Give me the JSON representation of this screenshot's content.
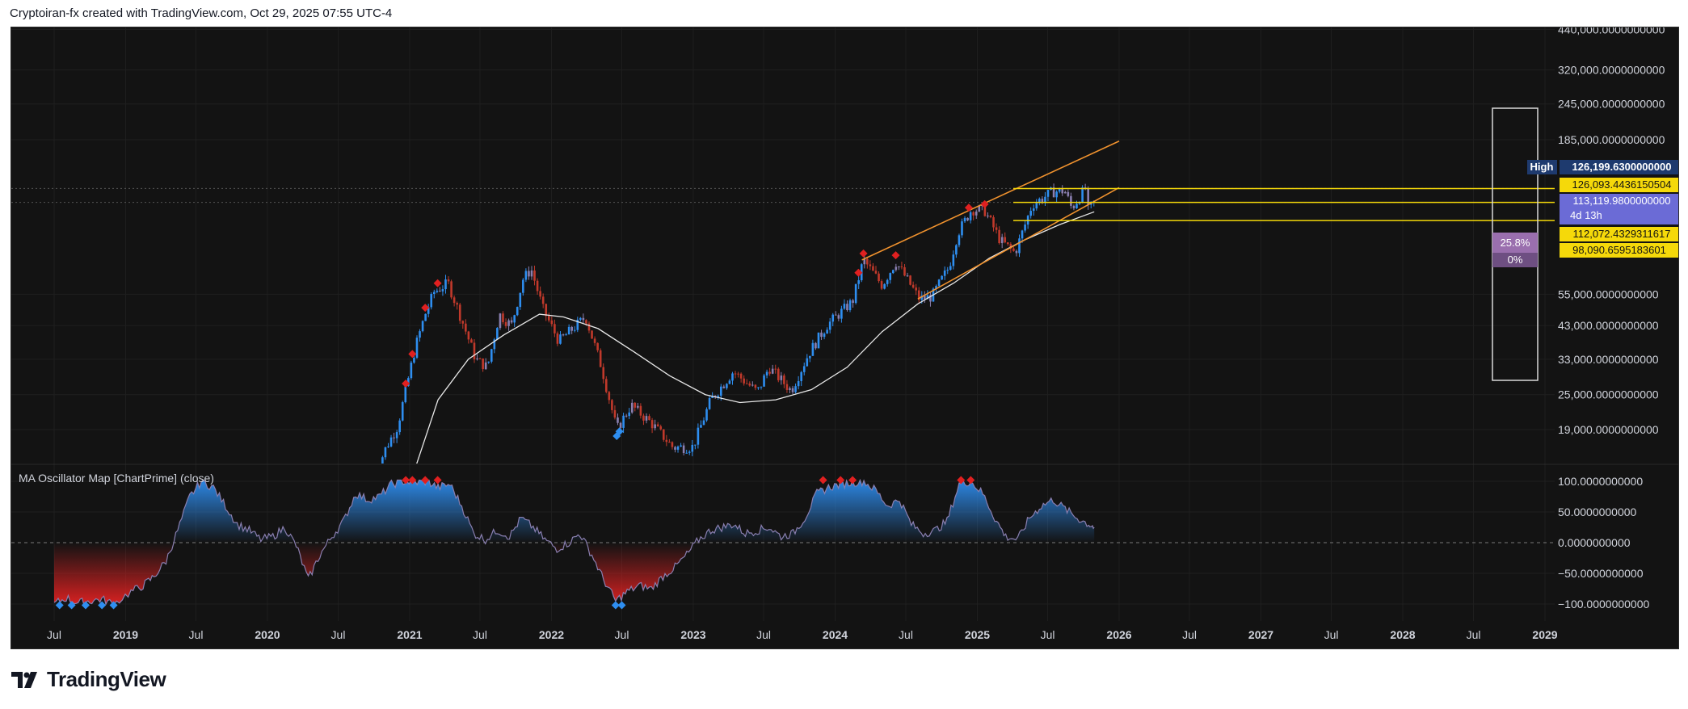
{
  "header": {
    "text": "Cryptoiran-fx created with TradingView.com, Oct 29, 2025 07:55 UTC-4"
  },
  "footer": {
    "brand": "TradingView"
  },
  "price_axis": {
    "ticks": [
      "440,000.0000000000",
      "320,000.0000000000",
      "245,000.0000000000",
      "185,000.0000000000",
      "55,000.0000000000",
      "43,000.0000000000",
      "33,000.0000000000",
      "25,000.0000000000",
      "19,000.0000000000"
    ],
    "tick_values": [
      440000,
      320000,
      245000,
      185000,
      55000,
      43000,
      33000,
      25000,
      19000
    ]
  },
  "price_tags": {
    "high_label": "High",
    "high_value": "126,199.6300000000",
    "tag1": "126,093.4436150504",
    "tag2": "113,119.9800000000",
    "tag2_sub": "4d 13h",
    "tag3": "112,072.4329311617",
    "tag4": "98,090.6595183601",
    "pct_top": "25.8%",
    "pct_bottom": "0%"
  },
  "oscillator": {
    "title": "MA Oscillator Map [ChartPrime] (close)",
    "ticks": [
      "100.0000000000",
      "50.0000000000",
      "0.0000000000",
      "−50.0000000000",
      "−100.0000000000"
    ],
    "tick_values": [
      100,
      50,
      0,
      -50,
      -100
    ]
  },
  "time_axis": {
    "labels": [
      {
        "text": "Jul",
        "bold": false
      },
      {
        "text": "2019",
        "bold": true
      },
      {
        "text": "Jul",
        "bold": false
      },
      {
        "text": "2020",
        "bold": true
      },
      {
        "text": "Jul",
        "bold": false
      },
      {
        "text": "2021",
        "bold": true
      },
      {
        "text": "Jul",
        "bold": false
      },
      {
        "text": "2022",
        "bold": true
      },
      {
        "text": "Jul",
        "bold": false
      },
      {
        "text": "2023",
        "bold": true
      },
      {
        "text": "Jul",
        "bold": false
      },
      {
        "text": "2024",
        "bold": true
      },
      {
        "text": "Jul",
        "bold": false
      },
      {
        "text": "2025",
        "bold": true
      },
      {
        "text": "Jul",
        "bold": false
      },
      {
        "text": "2026",
        "bold": true
      },
      {
        "text": "Jul",
        "bold": false
      },
      {
        "text": "2027",
        "bold": true
      },
      {
        "text": "Jul",
        "bold": false
      },
      {
        "text": "2028",
        "bold": true
      },
      {
        "text": "Jul",
        "bold": false
      },
      {
        "text": "2029",
        "bold": true
      }
    ]
  },
  "colors": {
    "background": "#131313",
    "bull": "#2e8ef0",
    "bear": "#c0392b",
    "neutral": "#8a7fb0",
    "ma": "#e8e8e8",
    "channel": "#f0922e",
    "level": "#f5d90a",
    "high_tag": "#1e3a6e",
    "current_tag": "#6b6bd6"
  },
  "chart_data": [
    {
      "type": "candlestick",
      "ylabel": "",
      "scale": "log",
      "ylim": [
        16000,
        460000
      ],
      "x": [
        "2018-07",
        "2019-01",
        "2019-07",
        "2020-01",
        "2020-07",
        "2021-01",
        "2021-07",
        "2022-01",
        "2022-07",
        "2023-01",
        "2023-07",
        "2024-01",
        "2024-07",
        "2025-01",
        "2025-07",
        "2026-01",
        "2026-07",
        "2027-01",
        "2027-07",
        "2028-01",
        "2028-07",
        "2029-01"
      ],
      "price_path": [
        [
          "2020-10-01",
          13000
        ],
        [
          "2020-11-01",
          16500
        ],
        [
          "2020-12-01",
          19500
        ],
        [
          "2020-12-25",
          27000
        ],
        [
          "2021-01-15",
          36000
        ],
        [
          "2021-02-10",
          47000
        ],
        [
          "2021-03-05",
          56000
        ],
        [
          "2021-04-10",
          60000
        ],
        [
          "2021-05-15",
          45000
        ],
        [
          "2021-06-20",
          33000
        ],
        [
          "2021-07-20",
          31000
        ],
        [
          "2021-08-20",
          47000
        ],
        [
          "2021-09-20",
          43000
        ],
        [
          "2021-10-20",
          62000
        ],
        [
          "2021-11-10",
          67000
        ],
        [
          "2021-12-10",
          49000
        ],
        [
          "2022-01-20",
          38000
        ],
        [
          "2022-03-30",
          46000
        ],
        [
          "2022-05-10",
          31000
        ],
        [
          "2022-06-18",
          19000
        ],
        [
          "2022-07-25",
          23000
        ],
        [
          "2022-09-15",
          20000
        ],
        [
          "2022-11-10",
          16500
        ],
        [
          "2022-12-31",
          16600
        ],
        [
          "2023-02-15",
          24000
        ],
        [
          "2023-04-14",
          30000
        ],
        [
          "2023-06-15",
          25500
        ],
        [
          "2023-07-15",
          31000
        ],
        [
          "2023-09-10",
          25800
        ],
        [
          "2023-10-25",
          34500
        ],
        [
          "2023-12-10",
          43000
        ],
        [
          "2024-02-15",
          52000
        ],
        [
          "2024-03-14",
          72000
        ],
        [
          "2024-05-01",
          59000
        ],
        [
          "2024-06-05",
          71000
        ],
        [
          "2024-08-05",
          53000
        ],
        [
          "2024-09-06",
          54000
        ],
        [
          "2024-10-20",
          68000
        ],
        [
          "2024-11-12",
          89000
        ],
        [
          "2024-12-17",
          107000
        ],
        [
          "2025-01-20",
          106000
        ],
        [
          "2025-03-01",
          84000
        ],
        [
          "2025-04-08",
          76000
        ],
        [
          "2025-05-22",
          111000
        ],
        [
          "2025-07-14",
          123000
        ],
        [
          "2025-08-14",
          124000
        ],
        [
          "2025-09-01",
          108000
        ],
        [
          "2025-10-06",
          126199
        ],
        [
          "2025-10-10",
          105000
        ],
        [
          "2025-10-29",
          113120
        ]
      ],
      "moving_average": [
        [
          "2021-01-15",
          14000
        ],
        [
          "2021-03-15",
          24000
        ],
        [
          "2021-06-01",
          33000
        ],
        [
          "2021-09-01",
          40000
        ],
        [
          "2021-12-01",
          47000
        ],
        [
          "2022-02-01",
          46000
        ],
        [
          "2022-05-01",
          42000
        ],
        [
          "2022-08-01",
          35000
        ],
        [
          "2022-11-01",
          29000
        ],
        [
          "2023-02-01",
          25000
        ],
        [
          "2023-05-01",
          23500
        ],
        [
          "2023-08-01",
          24000
        ],
        [
          "2023-11-01",
          26000
        ],
        [
          "2024-02-01",
          31000
        ],
        [
          "2024-05-01",
          41000
        ],
        [
          "2024-08-01",
          51000
        ],
        [
          "2024-11-01",
          60000
        ],
        [
          "2025-02-01",
          73000
        ],
        [
          "2025-05-01",
          84000
        ],
        [
          "2025-08-01",
          95000
        ],
        [
          "2025-10-29",
          105000
        ]
      ],
      "signals_sell": [
        "2020-12-22",
        "2021-01-08",
        "2021-02-10",
        "2021-03-14",
        "2024-03-01",
        "2024-03-14",
        "2024-06-05",
        "2024-12-10",
        "2025-01-20"
      ],
      "signals_buy": [
        "2022-06-18",
        "2022-06-25"
      ],
      "channel": {
        "upper": [
          [
            "2024-03-10",
            72000
          ],
          [
            "2026-01-01",
            183000
          ]
        ],
        "lower": [
          [
            "2024-08-01",
            53000
          ],
          [
            "2026-01-01",
            127000
          ]
        ]
      },
      "levels": [
        {
          "value": 126093.44,
          "label": "126,093.4436150504"
        },
        {
          "value": 113119.98,
          "label": "113,119.9800000000"
        },
        {
          "value": 112072.43,
          "label": "112,072.4329311617"
        },
        {
          "value": 98090.66,
          "label": "98,090.6595183601"
        }
      ],
      "high": 126199.63
    },
    {
      "type": "area",
      "name": "MA Oscillator Map [ChartPrime] (close)",
      "ylim": [
        -110,
        110
      ],
      "x": [
        "2018-07-01",
        "2018-08-01",
        "2018-09-01",
        "2018-10-01",
        "2018-11-01",
        "2018-12-01",
        "2019-01-15",
        "2019-02-15",
        "2019-03-15",
        "2019-04-15",
        "2019-05-15",
        "2019-06-15",
        "2019-07-15",
        "2019-08-15",
        "2019-09-15",
        "2019-10-15",
        "2019-11-15",
        "2019-12-15",
        "2020-01-15",
        "2020-02-15",
        "2020-03-15",
        "2020-04-15",
        "2020-05-15",
        "2020-06-15",
        "2020-07-15",
        "2020-08-15",
        "2020-09-15",
        "2020-10-15",
        "2020-11-15",
        "2020-12-15",
        "2021-01-15",
        "2021-02-15",
        "2021-03-15",
        "2021-04-15",
        "2021-05-15",
        "2021-06-15",
        "2021-07-15",
        "2021-08-15",
        "2021-09-15",
        "2021-10-15",
        "2021-11-15",
        "2021-12-15",
        "2022-01-15",
        "2022-02-15",
        "2022-03-15",
        "2022-04-15",
        "2022-05-15",
        "2022-06-15",
        "2022-07-15",
        "2022-08-15",
        "2022-09-15",
        "2022-10-15",
        "2022-11-15",
        "2022-12-15",
        "2023-01-15",
        "2023-02-15",
        "2023-03-15",
        "2023-04-15",
        "2023-05-15",
        "2023-06-15",
        "2023-07-15",
        "2023-08-15",
        "2023-09-15",
        "2023-10-15",
        "2023-11-15",
        "2023-12-15",
        "2024-01-15",
        "2024-02-15",
        "2024-03-15",
        "2024-04-15",
        "2024-05-15",
        "2024-06-15",
        "2024-07-15",
        "2024-08-15",
        "2024-09-15",
        "2024-10-15",
        "2024-11-15",
        "2024-12-15",
        "2025-01-15",
        "2025-02-15",
        "2025-03-15",
        "2025-04-15",
        "2025-05-15",
        "2025-06-15",
        "2025-07-15",
        "2025-08-15",
        "2025-09-15",
        "2025-10-15",
        "2025-10-29"
      ],
      "values": [
        -100,
        -90,
        -98,
        -95,
        -92,
        -100,
        -80,
        -70,
        -55,
        -30,
        20,
        75,
        100,
        90,
        60,
        30,
        20,
        5,
        10,
        25,
        -5,
        -60,
        -20,
        10,
        35,
        80,
        70,
        75,
        95,
        100,
        98,
        100,
        90,
        95,
        60,
        15,
        5,
        20,
        10,
        40,
        25,
        5,
        -10,
        0,
        15,
        -20,
        -60,
        -95,
        -80,
        -70,
        -75,
        -55,
        -40,
        -20,
        5,
        20,
        25,
        30,
        15,
        20,
        25,
        10,
        15,
        40,
        80,
        90,
        95,
        98,
        100,
        85,
        60,
        70,
        30,
        15,
        20,
        35,
        95,
        100,
        80,
        40,
        10,
        5,
        40,
        60,
        70,
        55,
        40,
        30,
        25
      ]
    }
  ]
}
